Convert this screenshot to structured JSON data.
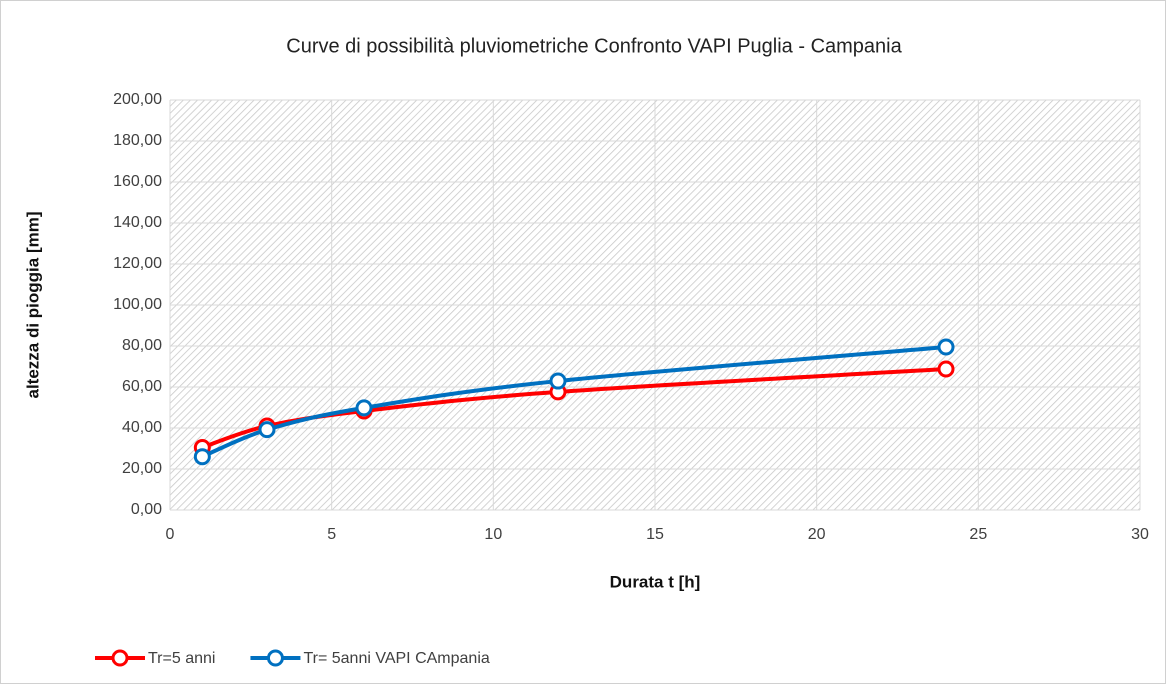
{
  "chart_data": {
    "type": "line",
    "title": "Curve di possibilità pluviometriche Confronto VAPI Puglia - Campania",
    "x_label": "Durata t [h]",
    "y_label": "altezza di pioggia [mm]",
    "x": [
      1,
      3,
      6,
      12,
      24
    ],
    "series": [
      {
        "name": "Tr=5 anni",
        "color": "#ff0000",
        "values": [
          30.5,
          41,
          48.3,
          57.6,
          68.8
        ]
      },
      {
        "name": "Tr= 5anni VAPI CAmpania",
        "color": "#0070c0",
        "values": [
          26,
          39.2,
          49.8,
          62.9,
          79.5
        ]
      }
    ],
    "xlim": [
      0,
      30
    ],
    "xticks": [
      0,
      5,
      10,
      15,
      20,
      25,
      30
    ],
    "ylim": [
      0,
      200
    ],
    "yticks": [
      {
        "value": 0,
        "label": "0,00"
      },
      {
        "value": 20,
        "label": "20,00"
      },
      {
        "value": 40,
        "label": "40,00"
      },
      {
        "value": 60,
        "label": "60,00"
      },
      {
        "value": 80,
        "label": "80,00"
      },
      {
        "value": 100,
        "label": "100,00"
      },
      {
        "value": 120,
        "label": "120,00"
      },
      {
        "value": 140,
        "label": "140,00"
      },
      {
        "value": 160,
        "label": "160,00"
      },
      {
        "value": 180,
        "label": "180,00"
      },
      {
        "value": 200,
        "label": "200,00"
      }
    ],
    "grid": true,
    "legend": "bottom-left"
  }
}
